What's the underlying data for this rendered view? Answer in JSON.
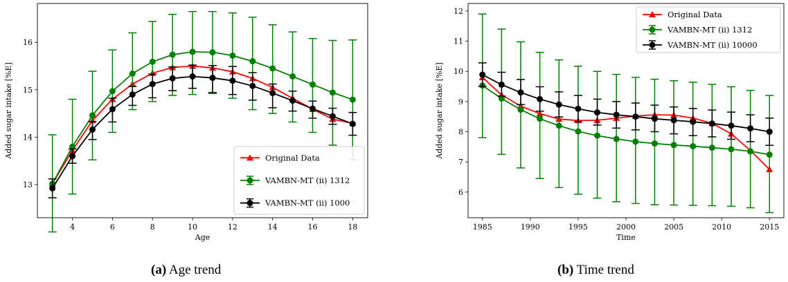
{
  "chart_data": [
    {
      "type": "line",
      "ylabel": "Added sugar intake [%E]",
      "xlabel": "Age",
      "x": [
        3,
        4,
        5,
        6,
        7,
        8,
        9,
        10,
        11,
        12,
        13,
        14,
        15,
        16,
        17,
        18
      ],
      "xlim": [
        2.25,
        18.75
      ],
      "ylim": [
        12.3,
        16.82
      ],
      "xticks": [
        4,
        6,
        8,
        10,
        12,
        14,
        16,
        18
      ],
      "yticks": [
        13,
        14,
        15,
        16
      ],
      "legend": "lower-right",
      "series": [
        {
          "name": "Original Data",
          "color": "#ff0000",
          "marker": "triangle",
          "values": [
            13.02,
            13.72,
            14.35,
            14.8,
            15.12,
            15.35,
            15.47,
            15.5,
            15.46,
            15.38,
            15.24,
            15.05,
            14.82,
            14.59,
            14.38,
            14.29
          ]
        },
        {
          "name": "VAMBN-MT (ii) 1312",
          "color": "#008000",
          "marker": "circle",
          "values": [
            13.02,
            13.8,
            14.46,
            14.97,
            15.34,
            15.59,
            15.74,
            15.8,
            15.79,
            15.72,
            15.6,
            15.45,
            15.28,
            15.11,
            14.94,
            14.79
          ],
          "lower": [
            12.0,
            12.8,
            13.52,
            14.1,
            14.58,
            14.75,
            14.88,
            14.9,
            14.92,
            14.82,
            14.58,
            14.5,
            14.32,
            14.1,
            13.83,
            13.52
          ],
          "upper": [
            14.05,
            14.8,
            15.39,
            15.84,
            16.2,
            16.44,
            16.59,
            16.65,
            16.65,
            16.62,
            16.53,
            16.37,
            16.22,
            16.08,
            16.04,
            16.05
          ]
        },
        {
          "name": "VAMBN-MT (ii) 1000",
          "color": "#000000",
          "marker": "circle",
          "values": [
            12.92,
            13.6,
            14.16,
            14.59,
            14.9,
            15.12,
            15.24,
            15.28,
            15.25,
            15.19,
            15.08,
            14.93,
            14.77,
            14.6,
            14.44,
            14.28
          ],
          "lower": [
            12.72,
            13.45,
            13.95,
            14.32,
            14.67,
            14.83,
            14.98,
            15.03,
            14.94,
            14.9,
            14.78,
            14.62,
            14.55,
            14.4,
            14.27,
            14.04
          ],
          "upper": [
            13.12,
            13.75,
            14.33,
            14.82,
            15.07,
            15.33,
            15.48,
            15.52,
            15.51,
            15.49,
            15.36,
            15.12,
            14.97,
            14.76,
            14.61,
            14.52
          ]
        }
      ],
      "caption_label": "(a)",
      "caption_text": " Age trend"
    },
    {
      "type": "line",
      "ylabel": "Added sugar intake [%E]",
      "xlabel": "Time",
      "x": [
        1985,
        1987,
        1989,
        1991,
        1993,
        1995,
        1997,
        1999,
        2001,
        2003,
        2005,
        2007,
        2009,
        2011,
        2013,
        2015
      ],
      "xlim": [
        1983.5,
        2016.5
      ],
      "ylim": [
        5.15,
        12.25
      ],
      "xticks": [
        1985,
        1990,
        1995,
        2000,
        2005,
        2010,
        2015
      ],
      "yticks": [
        6,
        7,
        8,
        9,
        10,
        11,
        12
      ],
      "legend": "upper-right",
      "series": [
        {
          "name": "Original Data",
          "color": "#ff0000",
          "marker": "triangle",
          "values": [
            9.8,
            9.22,
            8.85,
            8.6,
            8.42,
            8.37,
            8.38,
            8.45,
            8.52,
            8.56,
            8.55,
            8.45,
            8.28,
            7.93,
            7.38,
            6.75
          ]
        },
        {
          "name": "VAMBN-MT (ii) 1312",
          "color": "#008000",
          "marker": "circle",
          "values": [
            9.53,
            9.1,
            8.73,
            8.43,
            8.2,
            8.01,
            7.87,
            7.76,
            7.67,
            7.61,
            7.56,
            7.52,
            7.47,
            7.42,
            7.35,
            7.24
          ],
          "lower": [
            7.8,
            7.25,
            6.8,
            6.45,
            6.15,
            5.93,
            5.8,
            5.68,
            5.62,
            5.58,
            5.57,
            5.56,
            5.55,
            5.53,
            5.48,
            5.32
          ],
          "upper": [
            11.9,
            11.4,
            10.98,
            10.63,
            10.38,
            10.17,
            10.0,
            9.9,
            9.8,
            9.74,
            9.69,
            9.64,
            9.57,
            9.49,
            9.37,
            9.2
          ]
        },
        {
          "name": "VAMBN-MT (ii) 10000",
          "color": "#000000",
          "marker": "circle",
          "values": [
            9.89,
            9.56,
            9.3,
            9.08,
            8.9,
            8.76,
            8.64,
            8.56,
            8.5,
            8.43,
            8.38,
            8.33,
            8.27,
            8.2,
            8.11,
            8.0
          ],
          "lower": [
            9.5,
            9.18,
            8.9,
            8.68,
            8.49,
            8.33,
            8.22,
            8.12,
            8.06,
            8.0,
            7.93,
            7.87,
            7.83,
            7.75,
            7.67,
            7.55
          ],
          "upper": [
            10.28,
            9.97,
            9.73,
            9.49,
            9.32,
            9.2,
            9.08,
            9.0,
            8.95,
            8.88,
            8.82,
            8.77,
            8.72,
            8.65,
            8.56,
            8.45
          ]
        }
      ],
      "caption_label": "(b)",
      "caption_text": " Time trend"
    }
  ]
}
